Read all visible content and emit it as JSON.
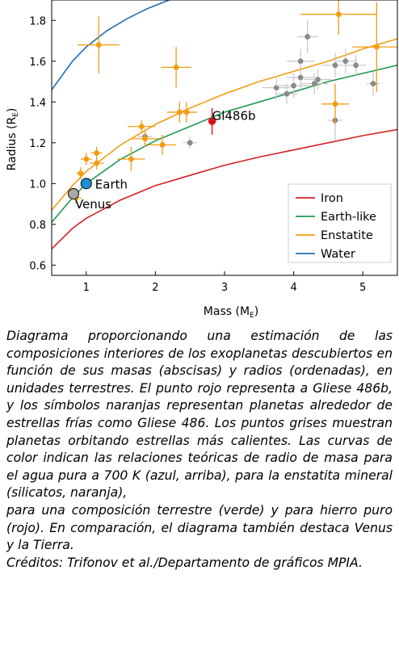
{
  "chart_data": {
    "type": "scatter",
    "xlabel": "Mass (M",
    "xlabel_sub": "E",
    "ylabel": "Radius (R",
    "ylabel_sub": "E",
    "xlim": [
      0.5,
      5.5
    ],
    "ylim": [
      0.55,
      1.9
    ],
    "xticks": [
      "1",
      "2",
      "3",
      "4",
      "5"
    ],
    "yticks": [
      "0.6",
      "0.8",
      "1.0",
      "1.2",
      "1.4",
      "1.6",
      "1.8"
    ],
    "grid": false,
    "legend_position": "bottom-right",
    "series": [
      {
        "name": "Iron",
        "color": "#d62027",
        "x": [
          0.5,
          0.8,
          1.0,
          1.5,
          2.0,
          2.5,
          3.0,
          3.5,
          4.0,
          4.5,
          5.0,
          5.5
        ],
        "y": [
          0.68,
          0.78,
          0.83,
          0.92,
          0.99,
          1.04,
          1.09,
          1.13,
          1.165,
          1.2,
          1.235,
          1.265
        ]
      },
      {
        "name": "Earth-like",
        "color": "#1f9a50",
        "x": [
          0.5,
          0.8,
          1.0,
          1.5,
          2.0,
          2.5,
          3.0,
          3.5,
          4.0,
          4.5,
          5.0,
          5.5
        ],
        "y": [
          0.81,
          0.93,
          1.0,
          1.12,
          1.21,
          1.28,
          1.35,
          1.4,
          1.45,
          1.5,
          1.54,
          1.58
        ]
      },
      {
        "name": "Enstatite",
        "color": "#f39c12",
        "x": [
          0.5,
          0.8,
          1.0,
          1.5,
          2.0,
          2.5,
          3.0,
          3.5,
          4.0,
          4.5,
          5.0,
          5.5
        ],
        "y": [
          0.87,
          0.99,
          1.06,
          1.19,
          1.29,
          1.37,
          1.44,
          1.5,
          1.55,
          1.6,
          1.66,
          1.71
        ]
      },
      {
        "name": "Water",
        "color": "#1f6fb5",
        "x": [
          0.5,
          0.8,
          1.0,
          1.3,
          1.6,
          1.9,
          2.2,
          2.5
        ],
        "y": [
          1.46,
          1.6,
          1.67,
          1.75,
          1.81,
          1.86,
          1.9,
          1.93
        ]
      }
    ],
    "points_orange": [
      {
        "x": 0.85,
        "y": 0.93,
        "xerr": 0.08,
        "yerr": 0.03
      },
      {
        "x": 0.92,
        "y": 1.05,
        "xerr": 0.06,
        "yerr": 0.03
      },
      {
        "x": 1.0,
        "y": 1.12,
        "xerr": 0.08,
        "yerr": 0.03
      },
      {
        "x": 1.15,
        "y": 1.15,
        "xerr": 0.08,
        "yerr": 0.03
      },
      {
        "x": 1.15,
        "y": 1.1,
        "xerr": 0.1,
        "yerr": 0.03
      },
      {
        "x": 1.18,
        "y": 1.68,
        "xerr": 0.3,
        "yerr": 0.14
      },
      {
        "x": 1.65,
        "y": 1.12,
        "xerr": 0.2,
        "yerr": 0.06
      },
      {
        "x": 1.8,
        "y": 1.28,
        "xerr": 0.2,
        "yerr": 0.03
      },
      {
        "x": 1.85,
        "y": 1.22,
        "xerr": 0.2,
        "yerr": 0.04
      },
      {
        "x": 2.1,
        "y": 1.19,
        "xerr": 0.2,
        "yerr": 0.05
      },
      {
        "x": 2.3,
        "y": 1.57,
        "xerr": 0.22,
        "yerr": 0.1
      },
      {
        "x": 2.35,
        "y": 1.35,
        "xerr": 0.18,
        "yerr": 0.05
      },
      {
        "x": 2.45,
        "y": 1.35,
        "xerr": 0.15,
        "yerr": 0.05
      },
      {
        "x": 4.6,
        "y": 1.39,
        "xerr": 0.2,
        "yerr": 0.1
      },
      {
        "x": 4.65,
        "y": 1.83,
        "xerr": 0.55,
        "yerr": 0.1
      },
      {
        "x": 5.2,
        "y": 1.67,
        "xerr": 0.35,
        "yerr": 0.22
      }
    ],
    "points_gray": [
      {
        "x": 1.85,
        "y": 1.23,
        "xerr": 0.1,
        "yerr": 0.04
      },
      {
        "x": 2.5,
        "y": 1.2,
        "xerr": 0.1,
        "yerr": 0.03
      },
      {
        "x": 3.75,
        "y": 1.47,
        "xerr": 0.2,
        "yerr": 0.06
      },
      {
        "x": 3.9,
        "y": 1.44,
        "xerr": 0.15,
        "yerr": 0.05
      },
      {
        "x": 4.0,
        "y": 1.48,
        "xerr": 0.25,
        "yerr": 0.06
      },
      {
        "x": 4.1,
        "y": 1.52,
        "xerr": 0.2,
        "yerr": 0.06
      },
      {
        "x": 4.1,
        "y": 1.6,
        "xerr": 0.2,
        "yerr": 0.06
      },
      {
        "x": 4.2,
        "y": 1.72,
        "xerr": 0.15,
        "yerr": 0.08
      },
      {
        "x": 4.3,
        "y": 1.49,
        "xerr": 0.2,
        "yerr": 0.05
      },
      {
        "x": 4.35,
        "y": 1.51,
        "xerr": 0.2,
        "yerr": 0.05
      },
      {
        "x": 4.6,
        "y": 1.58,
        "xerr": 0.2,
        "yerr": 0.06
      },
      {
        "x": 4.6,
        "y": 1.31,
        "xerr": 0.1,
        "yerr": 0.1
      },
      {
        "x": 4.75,
        "y": 1.6,
        "xerr": 0.15,
        "yerr": 0.06
      },
      {
        "x": 4.9,
        "y": 1.58,
        "xerr": 0.15,
        "yerr": 0.05
      },
      {
        "x": 5.15,
        "y": 1.49,
        "xerr": 0.1,
        "yerr": 0.06
      }
    ],
    "highlight": [
      {
        "label": "Gl486b",
        "x": 2.82,
        "y": 1.305,
        "xerr": 0.06,
        "yerr": 0.065,
        "color": "#d6131b"
      },
      {
        "label": "Earth",
        "x": 1.0,
        "y": 1.0,
        "color": "#1e90d6"
      },
      {
        "label": "Venus",
        "x": 0.815,
        "y": 0.95,
        "color": "#a8a8a8"
      }
    ],
    "colors": {
      "orange_point": "#f39c12",
      "gray_point": "#8a8a8a",
      "gray_error": "#c8c8c8"
    }
  },
  "caption": {
    "lines": [
      "Diagrama proporcionando una estimación de las composiciones interiores de los exoplanetas descubiertos en función de sus masas (abscisas) y radios (ordenadas), en unidades terrestres. El punto rojo representa a Gliese 486b, y los símbolos naranjas representan planetas alrededor de estrellas frías como Gliese 486. Los puntos grises muestran planetas orbitando estrellas más calientes. Las curvas de color indican las relaciones teóricas de radio de masa para el agua pura a 700 K (azul, arriba), para la enstatita mineral (silicatos, naranja),",
      "para una composición terrestre (verde) y para hierro puro (rojo). En comparación, el diagrama también destaca Venus y la Tierra.",
      "Créditos: Trifonov et al./Departamento de gráficos MPIA."
    ]
  }
}
